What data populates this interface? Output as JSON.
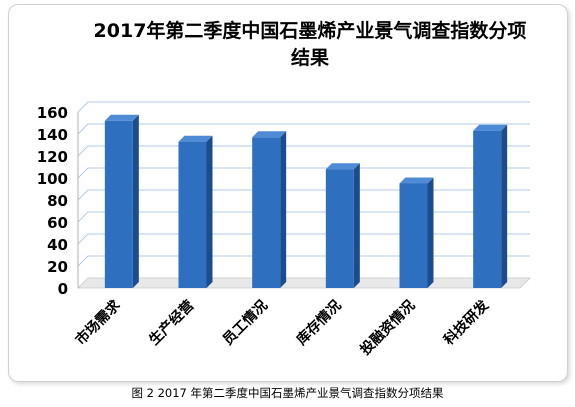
{
  "chart_data": {
    "type": "bar",
    "title": "2017年第二季度中国石墨烯产业景气调查指数分项结果",
    "categories": [
      "市场需求",
      "生产经营",
      "员工情况",
      "库存情况",
      "投融资情况",
      "科技研发"
    ],
    "values": [
      152,
      133,
      137,
      108,
      95,
      143
    ],
    "yticks": [
      "0",
      "20",
      "40",
      "60",
      "80",
      "100",
      "120",
      "140",
      "160"
    ],
    "ylim": [
      0,
      160
    ],
    "bar_color": "#2e6fbf",
    "grid": true,
    "style": "3d-column"
  },
  "caption": "图 2 2017 年第二季度中国石墨烯产业景气调查指数分项结果"
}
